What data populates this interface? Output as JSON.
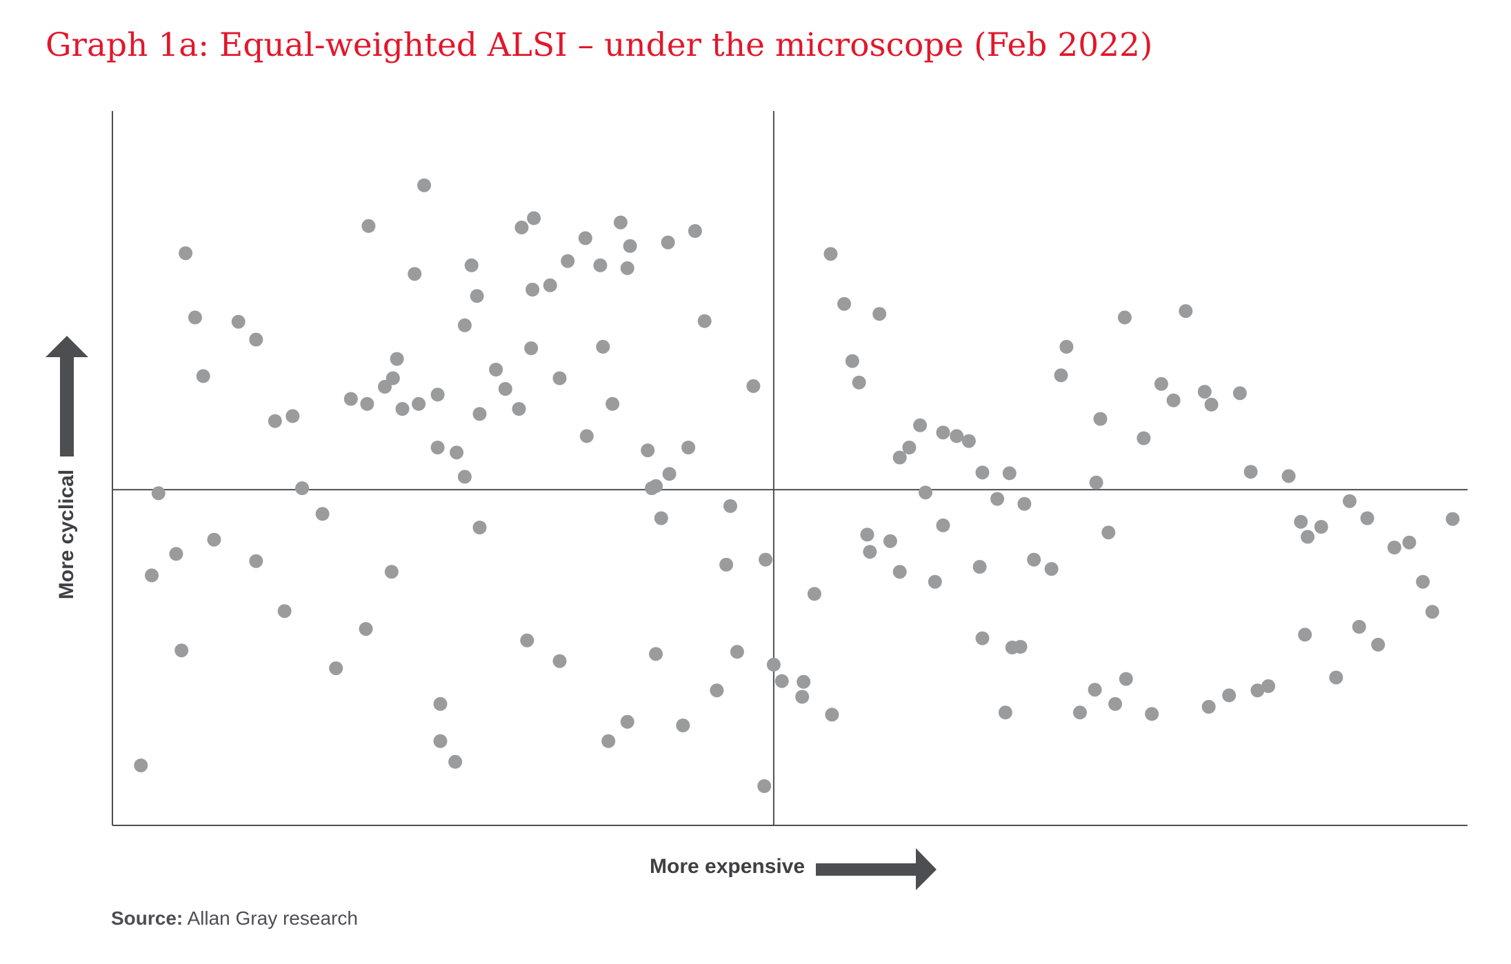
{
  "title": "Graph 1a: Equal-weighted ALSI – under the microscope (Feb 2022)",
  "source": {
    "label": "Source:",
    "text": " Allan Gray research"
  },
  "colors": {
    "title": "#e2172b",
    "dot": "#9a9b9d",
    "axis": "#4d4e52",
    "arrow": "#4d4e52"
  },
  "chart_data": {
    "type": "scatter",
    "title": "Graph 1a: Equal-weighted ALSI – under the microscope (Feb 2022)",
    "xlabel": "More expensive",
    "ylabel": "More cyclical",
    "xlim": [
      0,
      100
    ],
    "ylim": [
      0,
      100
    ],
    "quadrant_lines": {
      "x": 48.8,
      "y": 47.0
    },
    "grid": false,
    "axis_ticks": false,
    "points": [
      [
        6.1,
        71.1
      ],
      [
        5.4,
        80.1
      ],
      [
        6.7,
        62.9
      ],
      [
        9.3,
        70.5
      ],
      [
        10.6,
        68.0
      ],
      [
        12.0,
        56.6
      ],
      [
        13.3,
        57.3
      ],
      [
        14.0,
        47.2
      ],
      [
        15.5,
        43.6
      ],
      [
        17.6,
        59.7
      ],
      [
        18.8,
        59.0
      ],
      [
        20.1,
        61.4
      ],
      [
        20.7,
        62.6
      ],
      [
        21.4,
        58.3
      ],
      [
        22.6,
        59.0
      ],
      [
        24.0,
        52.9
      ],
      [
        25.4,
        52.2
      ],
      [
        26.0,
        48.8
      ],
      [
        30.9,
        66.8
      ],
      [
        24.0,
        60.3
      ],
      [
        26.0,
        70.0
      ],
      [
        27.1,
        41.7
      ],
      [
        28.3,
        63.8
      ],
      [
        30.0,
        58.3
      ],
      [
        27.1,
        57.6
      ],
      [
        31.0,
        75.0
      ],
      [
        32.3,
        75.6
      ],
      [
        33.0,
        62.6
      ],
      [
        35.0,
        54.5
      ],
      [
        36.9,
        59.0
      ],
      [
        38.0,
        78.0
      ],
      [
        42.5,
        52.9
      ],
      [
        39.8,
        47.2
      ],
      [
        36.2,
        67.0
      ],
      [
        41.1,
        49.2
      ],
      [
        40.5,
        43.0
      ],
      [
        43.7,
        70.6
      ],
      [
        45.3,
        36.5
      ],
      [
        47.3,
        61.5
      ],
      [
        46.1,
        24.3
      ],
      [
        45.6,
        44.7
      ],
      [
        44.6,
        18.9
      ],
      [
        48.8,
        22.5
      ],
      [
        48.2,
        37.2
      ],
      [
        43.0,
        83.2
      ],
      [
        41.0,
        81.6
      ],
      [
        37.5,
        84.4
      ],
      [
        38.2,
        81.1
      ],
      [
        36.0,
        78.4
      ],
      [
        34.9,
        82.2
      ],
      [
        33.6,
        79.0
      ],
      [
        31.1,
        85.0
      ],
      [
        30.2,
        83.7
      ],
      [
        26.9,
        74.1
      ],
      [
        23.0,
        89.6
      ],
      [
        22.3,
        77.2
      ],
      [
        18.9,
        83.9
      ],
      [
        21.0,
        65.3
      ],
      [
        26.5,
        78.4
      ],
      [
        29.0,
        61.1
      ],
      [
        39.5,
        52.5
      ],
      [
        40.1,
        47.5
      ],
      [
        49.4,
        20.2
      ],
      [
        50.9,
        18.0
      ],
      [
        53.1,
        15.5
      ],
      [
        55.7,
        40.7
      ],
      [
        57.4,
        39.8
      ],
      [
        58.8,
        52.9
      ],
      [
        53.0,
        80.0
      ],
      [
        54.0,
        73.0
      ],
      [
        54.6,
        65.0
      ],
      [
        56.6,
        71.6
      ],
      [
        55.1,
        62.0
      ],
      [
        58.1,
        35.5
      ],
      [
        60.7,
        34.1
      ],
      [
        64.2,
        26.2
      ],
      [
        64.0,
        36.2
      ],
      [
        65.9,
        15.8
      ],
      [
        66.4,
        24.9
      ],
      [
        67.0,
        25.0
      ],
      [
        68.0,
        37.2
      ],
      [
        69.3,
        35.9
      ],
      [
        71.4,
        15.8
      ],
      [
        73.5,
        41.0
      ],
      [
        72.6,
        48.0
      ],
      [
        70.0,
        63.0
      ],
      [
        70.4,
        67.0
      ],
      [
        74.7,
        71.1
      ],
      [
        72.9,
        56.9
      ],
      [
        76.1,
        54.2
      ],
      [
        77.4,
        61.8
      ],
      [
        81.1,
        58.9
      ],
      [
        80.6,
        60.7
      ],
      [
        79.2,
        72.0
      ],
      [
        78.3,
        59.5
      ],
      [
        83.2,
        60.5
      ],
      [
        84.0,
        49.5
      ],
      [
        86.8,
        48.9
      ],
      [
        88.2,
        40.4
      ],
      [
        87.7,
        42.5
      ],
      [
        89.2,
        41.8
      ],
      [
        91.3,
        45.4
      ],
      [
        92.6,
        43.0
      ],
      [
        94.6,
        38.9
      ],
      [
        95.7,
        39.6
      ],
      [
        96.7,
        34.1
      ],
      [
        97.4,
        29.9
      ],
      [
        98.9,
        42.9
      ],
      [
        92.0,
        27.8
      ],
      [
        93.4,
        25.3
      ],
      [
        90.3,
        20.7
      ],
      [
        88.0,
        26.7
      ],
      [
        85.3,
        19.5
      ],
      [
        84.5,
        18.9
      ],
      [
        82.4,
        18.2
      ],
      [
        80.9,
        16.6
      ],
      [
        76.7,
        15.6
      ],
      [
        74.0,
        17.0
      ],
      [
        72.5,
        19.0
      ],
      [
        61.3,
        55.0
      ],
      [
        62.3,
        54.5
      ],
      [
        63.2,
        53.8
      ],
      [
        58.1,
        51.5
      ],
      [
        60.0,
        46.6
      ],
      [
        65.3,
        45.7
      ],
      [
        67.3,
        45.0
      ],
      [
        59.6,
        56.0
      ],
      [
        51.0,
        20.1
      ],
      [
        51.8,
        32.4
      ],
      [
        55.9,
        38.3
      ],
      [
        66.2,
        49.3
      ],
      [
        74.8,
        20.5
      ],
      [
        64.2,
        49.4
      ],
      [
        61.3,
        42.0
      ],
      [
        10.6,
        37.0
      ],
      [
        7.5,
        40.0
      ],
      [
        5.1,
        24.5
      ],
      [
        16.5,
        22.0
      ],
      [
        12.7,
        30.0
      ],
      [
        3.4,
        46.5
      ],
      [
        4.7,
        38.0
      ],
      [
        2.9,
        35.0
      ],
      [
        2.1,
        8.4
      ],
      [
        25.3,
        8.9
      ],
      [
        24.2,
        11.8
      ],
      [
        24.2,
        17.0
      ],
      [
        30.6,
        25.9
      ],
      [
        33.0,
        23.0
      ],
      [
        36.6,
        11.8
      ],
      [
        38.0,
        14.5
      ],
      [
        40.1,
        24.0
      ],
      [
        42.1,
        14.0
      ],
      [
        48.1,
        5.5
      ],
      [
        18.7,
        27.5
      ],
      [
        20.6,
        35.5
      ]
    ]
  }
}
